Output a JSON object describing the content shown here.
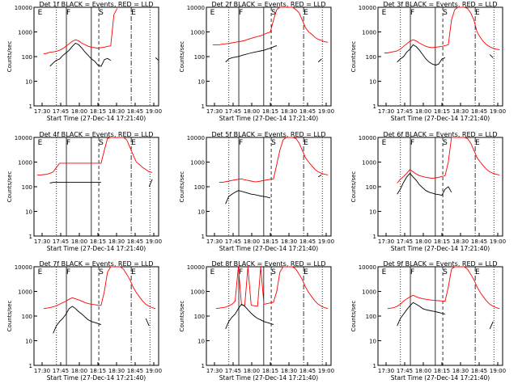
{
  "chart_data": {
    "type": "line",
    "y_scale": "log",
    "ylim": [
      1,
      10000
    ],
    "y_ticks": [
      1,
      10,
      100,
      1000,
      10000
    ],
    "y_tick_labels": [
      "1",
      "10",
      "100",
      "1000",
      "10000"
    ],
    "x_ticks": [
      "17:30",
      "17:45",
      "18:00",
      "18:15",
      "18:30",
      "18:45",
      "19:00"
    ],
    "xlabel": "Start Time (27-Dec-14 17:21:40)",
    "ylabel": "Counts/sec",
    "colors": {
      "events": "#000000",
      "lld": "#ff0000"
    },
    "panels": [
      {
        "title": "Det 1f BLACK = Events, RED = LLD",
        "events_end": 6.2,
        "events": [
          0,
          0,
          0,
          0,
          0,
          40,
          55,
          70,
          80,
          110,
          140,
          180,
          260,
          350,
          300,
          220,
          150,
          110,
          80,
          65,
          45,
          40,
          75,
          85,
          70,
          0,
          0,
          0,
          0,
          0,
          0,
          0,
          0,
          0,
          0,
          0,
          0,
          0,
          90,
          70
        ],
        "lld": [
          0,
          0,
          0,
          130,
          135,
          150,
          155,
          165,
          180,
          210,
          260,
          330,
          420,
          480,
          430,
          350,
          300,
          260,
          240,
          230,
          220,
          230,
          240,
          260,
          270,
          5000,
          9000,
          0,
          0,
          0,
          0,
          0,
          0,
          0,
          0,
          0,
          0,
          0,
          0,
          0
        ],
        "labels": [
          {
            "text": "E",
            "pos": 0.03
          },
          {
            "text": "F",
            "pos": 0.26
          },
          {
            "text": "S",
            "pos": 0.52
          },
          {
            "text": "E",
            "pos": 0.78
          }
        ]
      },
      {
        "title": "Det 2f BLACK = Events, RED = LLD",
        "events": [],
        "lld": [],
        "labels": [
          {
            "text": "E",
            "pos": 0.03
          },
          {
            "text": "F",
            "pos": 0.26
          },
          {
            "text": "S",
            "pos": 0.52
          },
          {
            "text": "E",
            "pos": 0.78
          }
        ]
      },
      {
        "title": "Det 3f BLACK = Events, RED = LLD",
        "events": [],
        "lld": [],
        "labels": [
          {
            "text": "E",
            "pos": 0.03
          },
          {
            "text": "F",
            "pos": 0.26
          },
          {
            "text": "S",
            "pos": 0.52
          },
          {
            "text": "E",
            "pos": 0.78
          }
        ]
      },
      {
        "title": "Det 4f BLACK = Events, RED = LLD",
        "events": [],
        "lld": [],
        "labels": [
          {
            "text": "E",
            "pos": 0.03
          },
          {
            "text": "F",
            "pos": 0.26
          },
          {
            "text": "S",
            "pos": 0.52
          },
          {
            "text": "E",
            "pos": 0.78
          }
        ]
      },
      {
        "title": "Det 5f BLACK = Events, RED = LLD",
        "events": [],
        "lld": [],
        "labels": [
          {
            "text": "F",
            "pos": 0.26
          },
          {
            "text": "S",
            "pos": 0.52
          },
          {
            "text": "E",
            "pos": 0.78
          }
        ]
      },
      {
        "title": "Det 6f BLACK = Events, RED = LLD",
        "events": [],
        "lld": [],
        "labels": [
          {
            "text": "E",
            "pos": 0.03
          },
          {
            "text": "F",
            "pos": 0.26
          },
          {
            "text": "S",
            "pos": 0.52
          },
          {
            "text": "E",
            "pos": 0.78
          }
        ]
      },
      {
        "title": "Det 7f BLACK = Events, RED = LLD",
        "events": [],
        "lld": [],
        "labels": [
          {
            "text": "E",
            "pos": 0.03
          },
          {
            "text": "F",
            "pos": 0.26
          },
          {
            "text": "S",
            "pos": 0.52
          },
          {
            "text": "E",
            "pos": 0.78
          }
        ]
      },
      {
        "title": "Det 8f BLACK = Events, RED = LLD",
        "events": [],
        "lld": [],
        "labels": [
          {
            "text": "E",
            "pos": 0.03
          },
          {
            "text": "F",
            "pos": 0.26
          },
          {
            "text": "S",
            "pos": 0.52
          },
          {
            "text": "E",
            "pos": 0.78
          }
        ]
      },
      {
        "title": "Det 9f BLACK = Events, RED = LLD",
        "events": [],
        "lld": [],
        "labels": [
          {
            "text": "E",
            "pos": 0.03
          },
          {
            "text": "F",
            "pos": 0.26
          },
          {
            "text": "S",
            "pos": 0.52
          },
          {
            "text": "E",
            "pos": 0.78
          }
        ]
      }
    ]
  }
}
